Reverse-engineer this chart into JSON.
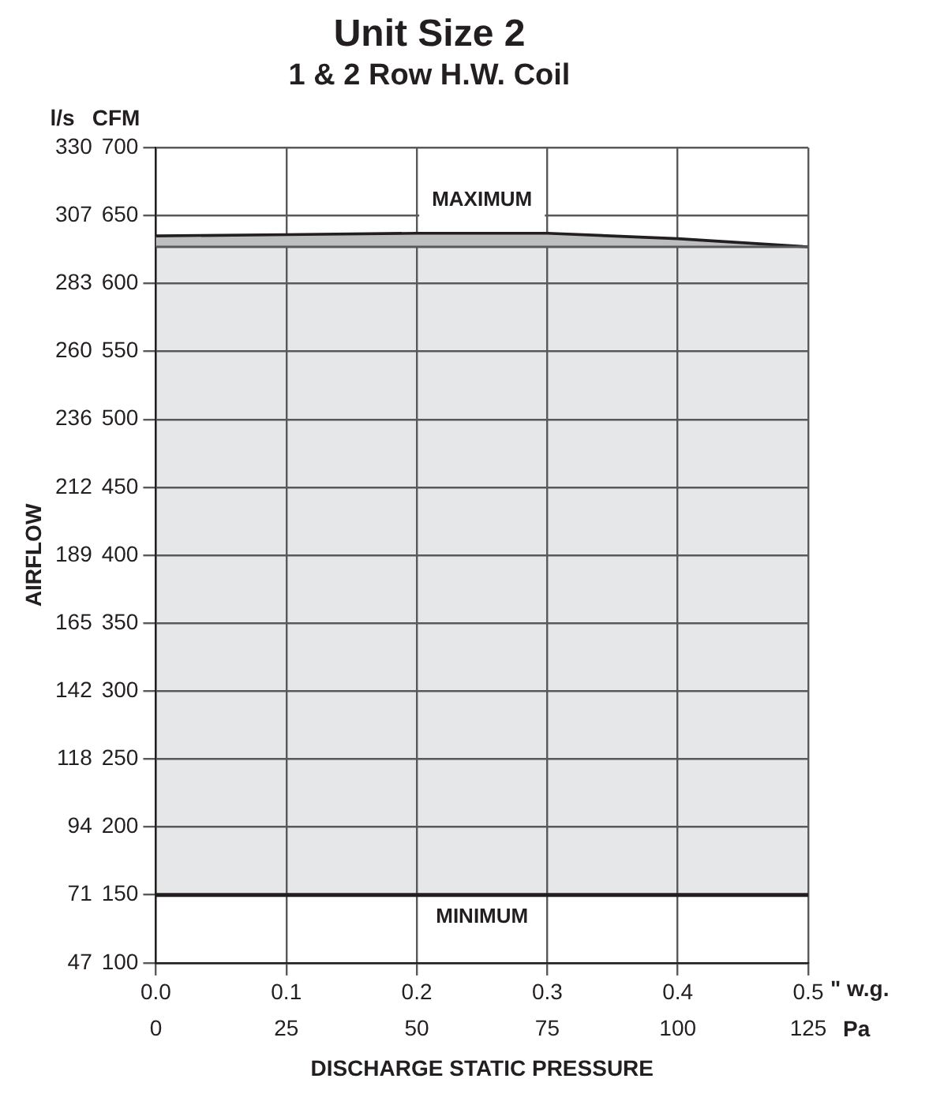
{
  "chart_data": {
    "type": "line",
    "title": "Unit Size 2",
    "subtitle": "1 & 2 Row H.W. Coil",
    "xlabel": "\" w.g.",
    "x2label": "Pa",
    "ylabel": "CFM",
    "y2label": "l/s",
    "xlim": [
      0,
      0.5
    ],
    "xticks": [
      {
        "value": 0,
        "label": "0.0"
      },
      0.1,
      0.2,
      0.3,
      0.4,
      0.5
    ],
    "x2lim": [
      0,
      125
    ],
    "x2ticks": [
      0,
      25,
      50,
      75,
      100,
      125
    ],
    "ylim": [
      100,
      700
    ],
    "yticks": [
      100,
      150,
      200,
      250,
      300,
      350,
      400,
      450,
      500,
      550,
      600,
      650,
      700
    ],
    "y2lim": [
      47.19,
      330.36
    ],
    "y2ticks": [
      {
        "value": 47.19,
        "label": "47"
      },
      {
        "value": 70.79,
        "label": "71"
      },
      {
        "value": 94.39,
        "label": "94"
      },
      {
        "value": 117.99,
        "label": "118"
      },
      {
        "value": 141.58,
        "label": "142"
      },
      {
        "value": 165.18,
        "label": "165"
      },
      {
        "value": 188.78,
        "label": "189"
      },
      {
        "value": 212.38,
        "label": "212"
      },
      {
        "value": 235.97,
        "label": "236"
      },
      {
        "value": 259.57,
        "label": "260"
      },
      {
        "value": 283.17,
        "label": "283"
      },
      {
        "value": 306.77,
        "label": "307"
      },
      {
        "value": 330.36,
        "label": "330"
      }
    ],
    "series": [
      {
        "type": "line",
        "color": "#58595b",
        "x": [
          0,
          0.5
        ],
        "values": [
          627,
          627
        ]
      },
      {
        "type": "area",
        "name": "MAXIMUM",
        "color": "#bcbec0",
        "x": [
          0,
          0.1,
          0.2,
          0.3,
          0.4,
          0.5
        ],
        "values": [
          635,
          636,
          637,
          637,
          633,
          627
        ]
      }
    ],
    "bands": [
      {
        "axis": "y",
        "from": 150,
        "to": 627,
        "color": "#e6e7e8"
      }
    ],
    "ref_lines": [
      {
        "axis": "y",
        "value": 150,
        "label": "MINIMUM",
        "color": "#231f20"
      }
    ],
    "annotations": [
      "AIRFLOW",
      "DISCHARGE STATIC PRESSURE"
    ],
    "grid": true,
    "legend": false
  }
}
